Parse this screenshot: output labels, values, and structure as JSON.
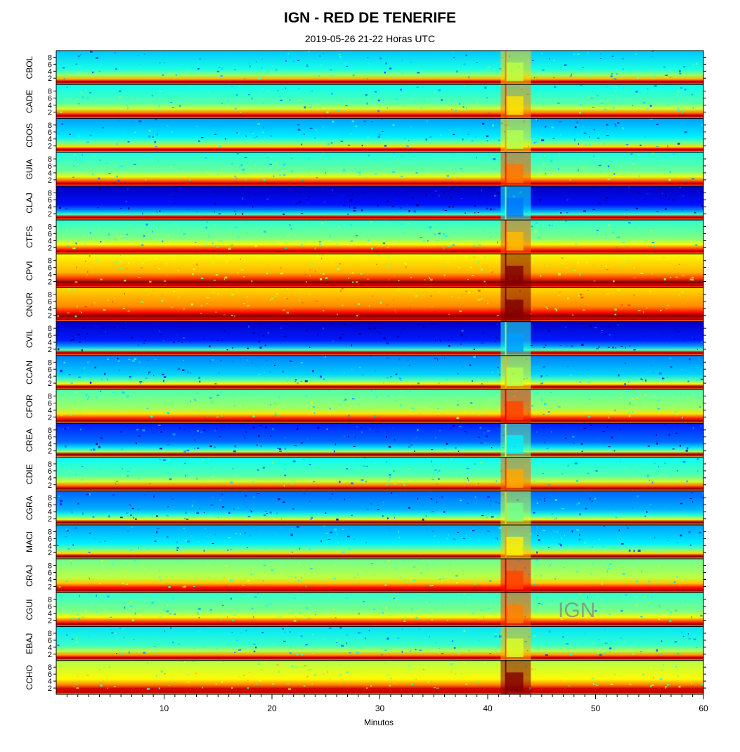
{
  "header": {
    "title": "IGN - RED DE TENERIFE",
    "subtitle": "2019-05-26   21-22 Horas UTC"
  },
  "watermark": "IGN",
  "chart_data": {
    "type": "heatmap",
    "title": "IGN - RED DE TENERIFE",
    "subtitle": "2019-05-26   21-22 Horas UTC",
    "xlabel": "Minutos",
    "ylabel": "",
    "xlim": [
      0,
      60
    ],
    "x_ticks": [
      "10",
      "20",
      "30",
      "40",
      "50",
      "60"
    ],
    "y_ticks": [
      "2",
      "4",
      "6",
      "8"
    ],
    "ylim": [
      1,
      9.5
    ],
    "colormap": [
      "#00007f",
      "#0000ff",
      "#00bfff",
      "#7fff7f",
      "#ffff00",
      "#ff7f00",
      "#ff0000",
      "#7f0000"
    ],
    "event": {
      "start_minute": 41.5,
      "end_minute": 44
    },
    "stations": [
      "CBOL",
      "CADE",
      "CDOS",
      "GUIA",
      "CLAJ",
      "CTFS",
      "CPVI",
      "CNOR",
      "CVIL",
      "CCAN",
      "CFOR",
      "CREA",
      "CDIE",
      "CGRA",
      "MACI",
      "CRAJ",
      "CGUI",
      "EBAJ",
      "CCHO"
    ],
    "noise_level": [
      0.32,
      0.38,
      0.28,
      0.4,
      0.06,
      0.42,
      0.62,
      0.66,
      0.07,
      0.25,
      0.45,
      0.15,
      0.38,
      0.22,
      0.28,
      0.48,
      0.42,
      0.35,
      0.55
    ],
    "event_strength": [
      0.4,
      0.45,
      0.45,
      0.6,
      0.3,
      0.45,
      0.7,
      0.7,
      0.35,
      0.5,
      0.6,
      0.35,
      0.55,
      0.45,
      0.6,
      0.55,
      0.55,
      0.4,
      0.75
    ]
  }
}
